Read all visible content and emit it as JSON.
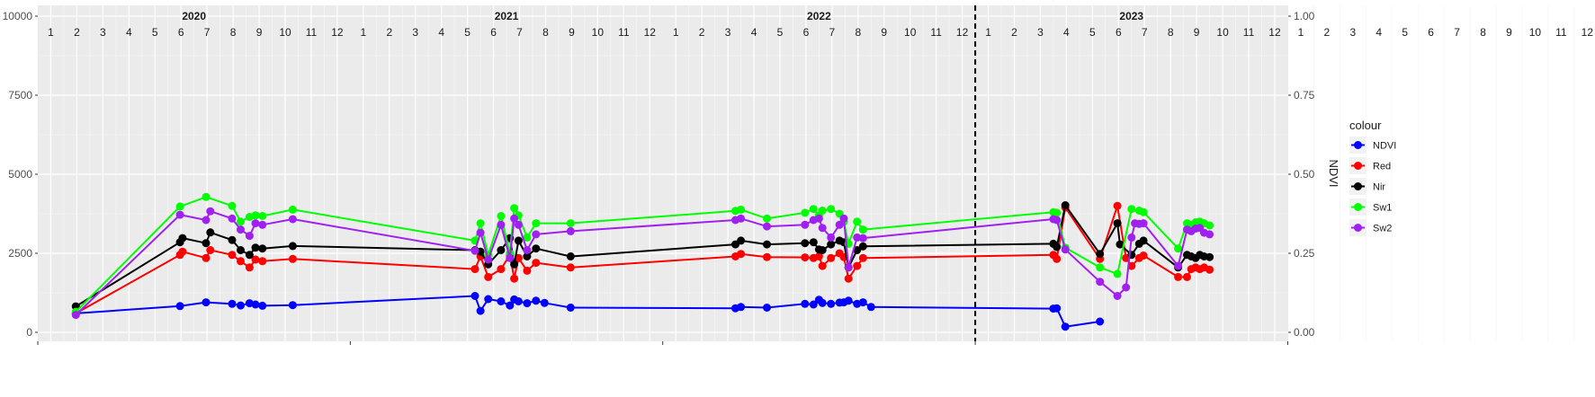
{
  "chart_data": {
    "type": "line",
    "title": "",
    "xlabel": "",
    "ylabel": "",
    "y2label": "NDVI",
    "ylim": [
      0,
      10000
    ],
    "y2lim": [
      0,
      1
    ],
    "x_range": [
      "2020-01-01",
      "2023-12-31"
    ],
    "y_ticks": [
      "0",
      "2500",
      "5000",
      "7500",
      "10000"
    ],
    "y2_ticks": [
      "0.00",
      "0.25",
      "0.50",
      "0.75",
      "1.00"
    ],
    "grid": true,
    "years": [
      {
        "label": "2020",
        "x": "2020-07-01"
      },
      {
        "label": "2021",
        "x": "2021-07-01"
      },
      {
        "label": "2022",
        "x": "2022-07-01"
      },
      {
        "label": "2023",
        "x": "2023-07-01"
      }
    ],
    "months": [
      "1",
      "2",
      "3",
      "4",
      "5",
      "6",
      "7",
      "8",
      "9",
      "10",
      "11",
      "12"
    ],
    "vline": {
      "x": "2023-01-01",
      "style": "dashed"
    },
    "legend": {
      "title": "colour",
      "position": "right"
    },
    "series": [
      {
        "name": "NDVI",
        "color": "#0000ff",
        "points": [
          [
            "2020-02-15",
            0.06
          ],
          [
            "2020-06-15",
            0.083
          ],
          [
            "2020-07-15",
            0.095
          ],
          [
            "2020-08-15",
            0.09
          ],
          [
            "2020-08-25",
            0.085
          ],
          [
            "2020-09-05",
            0.092
          ],
          [
            "2020-09-12",
            0.088
          ],
          [
            "2020-09-20",
            0.084
          ],
          [
            "2020-10-25",
            0.086
          ],
          [
            "2021-05-25",
            0.115
          ],
          [
            "2021-06-01",
            0.068
          ],
          [
            "2021-06-10",
            0.105
          ],
          [
            "2021-06-25",
            0.098
          ],
          [
            "2021-07-05",
            0.085
          ],
          [
            "2021-07-10",
            0.104
          ],
          [
            "2021-07-15",
            0.098
          ],
          [
            "2021-07-25",
            0.092
          ],
          [
            "2021-08-05",
            0.1
          ],
          [
            "2021-08-15",
            0.093
          ],
          [
            "2021-09-15",
            0.078
          ],
          [
            "2022-03-25",
            0.076
          ],
          [
            "2022-04-01",
            0.08
          ],
          [
            "2022-05-01",
            0.078
          ],
          [
            "2022-06-15",
            0.09
          ],
          [
            "2022-06-25",
            0.088
          ],
          [
            "2022-07-01",
            0.103
          ],
          [
            "2022-07-05",
            0.093
          ],
          [
            "2022-07-15",
            0.09
          ],
          [
            "2022-07-25",
            0.094
          ],
          [
            "2022-07-30",
            0.095
          ],
          [
            "2022-08-05",
            0.1
          ],
          [
            "2022-08-15",
            0.09
          ],
          [
            "2022-08-22",
            0.095
          ],
          [
            "2022-09-01",
            0.08
          ],
          [
            "2023-04-01",
            0.075
          ],
          [
            "2023-04-05",
            0.076
          ],
          [
            "2023-04-15",
            0.018
          ],
          [
            "2023-05-25",
            0.034
          ]
        ]
      },
      {
        "name": "Red",
        "color": "#ff0000",
        "points": [
          [
            "2020-02-15",
            0.06
          ],
          [
            "2020-06-15",
            0.245
          ],
          [
            "2020-06-18",
            0.255
          ],
          [
            "2020-07-15",
            0.235
          ],
          [
            "2020-07-20",
            0.26
          ],
          [
            "2020-08-15",
            0.245
          ],
          [
            "2020-08-25",
            0.225
          ],
          [
            "2020-09-05",
            0.205
          ],
          [
            "2020-09-12",
            0.23
          ],
          [
            "2020-09-20",
            0.225
          ],
          [
            "2020-10-25",
            0.232
          ],
          [
            "2021-05-25",
            0.2
          ],
          [
            "2021-06-01",
            0.24
          ],
          [
            "2021-06-10",
            0.175
          ],
          [
            "2021-06-25",
            0.2
          ],
          [
            "2021-07-05",
            0.245
          ],
          [
            "2021-07-10",
            0.17
          ],
          [
            "2021-07-15",
            0.235
          ],
          [
            "2021-07-25",
            0.195
          ],
          [
            "2021-08-05",
            0.22
          ],
          [
            "2021-09-15",
            0.205
          ],
          [
            "2022-03-25",
            0.24
          ],
          [
            "2022-04-01",
            0.248
          ],
          [
            "2022-05-01",
            0.238
          ],
          [
            "2022-06-15",
            0.237
          ],
          [
            "2022-06-25",
            0.235
          ],
          [
            "2022-07-01",
            0.24
          ],
          [
            "2022-07-05",
            0.21
          ],
          [
            "2022-07-15",
            0.235
          ],
          [
            "2022-07-25",
            0.25
          ],
          [
            "2022-07-30",
            0.238
          ],
          [
            "2022-08-05",
            0.17
          ],
          [
            "2022-08-15",
            0.21
          ],
          [
            "2022-08-22",
            0.235
          ],
          [
            "2023-04-01",
            0.245
          ],
          [
            "2023-04-05",
            0.232
          ],
          [
            "2023-04-15",
            0.395
          ],
          [
            "2023-05-25",
            0.232
          ],
          [
            "2023-06-15",
            0.4
          ],
          [
            "2023-06-25",
            0.235
          ],
          [
            "2023-07-01",
            0.21
          ],
          [
            "2023-07-10",
            0.235
          ],
          [
            "2023-07-15",
            0.243
          ],
          [
            "2023-08-25",
            0.175
          ],
          [
            "2023-09-05",
            0.175
          ],
          [
            "2023-09-10",
            0.2
          ],
          [
            "2023-09-15",
            0.205
          ],
          [
            "2023-09-20",
            0.2
          ],
          [
            "2023-09-25",
            0.205
          ],
          [
            "2023-10-01",
            0.198
          ]
        ]
      },
      {
        "name": "Nir",
        "color": "#000000",
        "points": [
          [
            "2020-02-15",
            0.082
          ],
          [
            "2020-06-15",
            0.285
          ],
          [
            "2020-06-18",
            0.298
          ],
          [
            "2020-07-15",
            0.282
          ],
          [
            "2020-07-20",
            0.316
          ],
          [
            "2020-08-15",
            0.292
          ],
          [
            "2020-08-25",
            0.26
          ],
          [
            "2020-09-05",
            0.245
          ],
          [
            "2020-09-12",
            0.268
          ],
          [
            "2020-09-20",
            0.265
          ],
          [
            "2020-10-25",
            0.273
          ],
          [
            "2021-05-25",
            0.26
          ],
          [
            "2021-06-01",
            0.255
          ],
          [
            "2021-06-10",
            0.215
          ],
          [
            "2021-06-25",
            0.26
          ],
          [
            "2021-07-05",
            0.298
          ],
          [
            "2021-07-10",
            0.215
          ],
          [
            "2021-07-15",
            0.29
          ],
          [
            "2021-07-25",
            0.24
          ],
          [
            "2021-08-05",
            0.265
          ],
          [
            "2021-09-15",
            0.24
          ],
          [
            "2022-03-25",
            0.278
          ],
          [
            "2022-04-01",
            0.29
          ],
          [
            "2022-05-01",
            0.278
          ],
          [
            "2022-06-15",
            0.282
          ],
          [
            "2022-06-25",
            0.285
          ],
          [
            "2022-07-01",
            0.262
          ],
          [
            "2022-07-05",
            0.26
          ],
          [
            "2022-07-15",
            0.278
          ],
          [
            "2022-07-25",
            0.29
          ],
          [
            "2022-07-30",
            0.285
          ],
          [
            "2022-08-05",
            0.205
          ],
          [
            "2022-08-15",
            0.26
          ],
          [
            "2022-08-22",
            0.272
          ],
          [
            "2023-04-01",
            0.28
          ],
          [
            "2023-04-05",
            0.27
          ],
          [
            "2023-04-15",
            0.402
          ],
          [
            "2023-05-25",
            0.248
          ],
          [
            "2023-06-15",
            0.345
          ],
          [
            "2023-06-18",
            0.278
          ],
          [
            "2023-07-01",
            0.245
          ],
          [
            "2023-07-10",
            0.28
          ],
          [
            "2023-07-15",
            0.29
          ],
          [
            "2023-08-25",
            0.205
          ],
          [
            "2023-09-05",
            0.245
          ],
          [
            "2023-09-10",
            0.24
          ],
          [
            "2023-09-15",
            0.235
          ],
          [
            "2023-09-20",
            0.245
          ],
          [
            "2023-09-25",
            0.24
          ],
          [
            "2023-10-01",
            0.238
          ]
        ]
      },
      {
        "name": "Sw1",
        "color": "#00ff00",
        "points": [
          [
            "2020-02-15",
            0.065
          ],
          [
            "2020-06-15",
            0.398
          ],
          [
            "2020-07-15",
            0.428
          ],
          [
            "2020-08-15",
            0.4
          ],
          [
            "2020-08-25",
            0.35
          ],
          [
            "2020-09-05",
            0.365
          ],
          [
            "2020-09-12",
            0.37
          ],
          [
            "2020-09-20",
            0.368
          ],
          [
            "2020-10-25",
            0.388
          ],
          [
            "2021-05-25",
            0.29
          ],
          [
            "2021-06-01",
            0.345
          ],
          [
            "2021-06-10",
            0.245
          ],
          [
            "2021-06-25",
            0.368
          ],
          [
            "2021-07-05",
            0.25
          ],
          [
            "2021-07-10",
            0.393
          ],
          [
            "2021-07-15",
            0.37
          ],
          [
            "2021-07-25",
            0.3
          ],
          [
            "2021-08-05",
            0.345
          ],
          [
            "2021-09-15",
            0.345
          ],
          [
            "2022-03-25",
            0.384
          ],
          [
            "2022-04-01",
            0.388
          ],
          [
            "2022-05-01",
            0.36
          ],
          [
            "2022-06-15",
            0.378
          ],
          [
            "2022-06-25",
            0.39
          ],
          [
            "2022-07-01",
            0.37
          ],
          [
            "2022-07-05",
            0.385
          ],
          [
            "2022-07-15",
            0.39
          ],
          [
            "2022-07-25",
            0.375
          ],
          [
            "2022-07-30",
            0.35
          ],
          [
            "2022-08-05",
            0.28
          ],
          [
            "2022-08-15",
            0.35
          ],
          [
            "2022-08-22",
            0.325
          ],
          [
            "2023-04-01",
            0.38
          ],
          [
            "2023-04-05",
            0.378
          ],
          [
            "2023-04-15",
            0.268
          ],
          [
            "2023-05-25",
            0.205
          ],
          [
            "2023-06-15",
            0.185
          ],
          [
            "2023-07-01",
            0.39
          ],
          [
            "2023-07-10",
            0.385
          ],
          [
            "2023-07-15",
            0.38
          ],
          [
            "2023-08-25",
            0.265
          ],
          [
            "2023-09-05",
            0.345
          ],
          [
            "2023-09-10",
            0.34
          ],
          [
            "2023-09-15",
            0.348
          ],
          [
            "2023-09-20",
            0.35
          ],
          [
            "2023-09-25",
            0.345
          ],
          [
            "2023-10-01",
            0.338
          ]
        ]
      },
      {
        "name": "Sw2",
        "color": "#a020f0",
        "points": [
          [
            "2020-02-15",
            0.055
          ],
          [
            "2020-06-15",
            0.372
          ],
          [
            "2020-07-15",
            0.355
          ],
          [
            "2020-07-20",
            0.383
          ],
          [
            "2020-08-15",
            0.36
          ],
          [
            "2020-08-25",
            0.325
          ],
          [
            "2020-09-05",
            0.305
          ],
          [
            "2020-09-12",
            0.345
          ],
          [
            "2020-09-20",
            0.34
          ],
          [
            "2020-10-25",
            0.358
          ],
          [
            "2021-05-25",
            0.258
          ],
          [
            "2021-06-01",
            0.315
          ],
          [
            "2021-06-10",
            0.23
          ],
          [
            "2021-06-25",
            0.34
          ],
          [
            "2021-07-05",
            0.235
          ],
          [
            "2021-07-10",
            0.36
          ],
          [
            "2021-07-15",
            0.34
          ],
          [
            "2021-07-25",
            0.26
          ],
          [
            "2021-08-05",
            0.31
          ],
          [
            "2021-09-15",
            0.32
          ],
          [
            "2022-03-25",
            0.355
          ],
          [
            "2022-04-01",
            0.36
          ],
          [
            "2022-05-01",
            0.335
          ],
          [
            "2022-06-15",
            0.34
          ],
          [
            "2022-06-25",
            0.355
          ],
          [
            "2022-07-01",
            0.36
          ],
          [
            "2022-07-05",
            0.33
          ],
          [
            "2022-07-15",
            0.3
          ],
          [
            "2022-07-25",
            0.34
          ],
          [
            "2022-07-30",
            0.36
          ],
          [
            "2022-08-05",
            0.205
          ],
          [
            "2022-08-15",
            0.3
          ],
          [
            "2022-08-22",
            0.298
          ],
          [
            "2023-04-01",
            0.358
          ],
          [
            "2023-04-05",
            0.355
          ],
          [
            "2023-04-15",
            0.262
          ],
          [
            "2023-05-25",
            0.16
          ],
          [
            "2023-06-15",
            0.115
          ],
          [
            "2023-06-25",
            0.142
          ],
          [
            "2023-07-01",
            0.3
          ],
          [
            "2023-07-05",
            0.345
          ],
          [
            "2023-07-10",
            0.343
          ],
          [
            "2023-07-15",
            0.345
          ],
          [
            "2023-08-25",
            0.21
          ],
          [
            "2023-09-05",
            0.325
          ],
          [
            "2023-09-10",
            0.32
          ],
          [
            "2023-09-15",
            0.328
          ],
          [
            "2023-09-20",
            0.33
          ],
          [
            "2023-09-25",
            0.315
          ],
          [
            "2023-10-01",
            0.31
          ]
        ]
      }
    ]
  }
}
